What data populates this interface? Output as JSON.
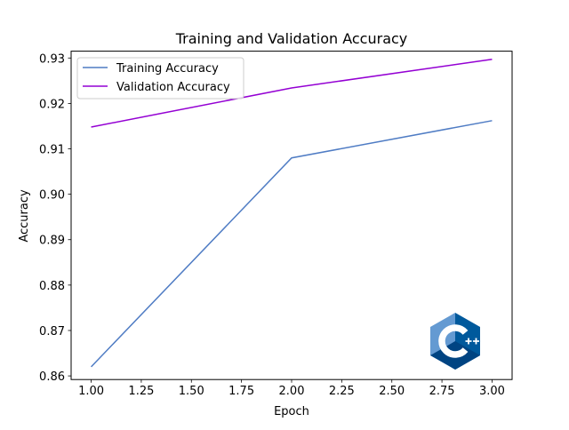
{
  "chart_data": {
    "type": "line",
    "title": "Training and Validation Accuracy",
    "xlabel": "Epoch",
    "ylabel": "Accuracy",
    "x": [
      1.0,
      2.0,
      3.0
    ],
    "xlim": [
      0.9,
      3.1
    ],
    "ylim": [
      0.8592,
      0.9315
    ],
    "x_ticks": [
      1.0,
      1.25,
      1.5,
      1.75,
      2.0,
      2.25,
      2.5,
      2.75,
      3.0
    ],
    "x_tick_labels": [
      "1.00",
      "1.25",
      "1.50",
      "1.75",
      "2.00",
      "2.25",
      "2.50",
      "2.75",
      "3.00"
    ],
    "y_ticks": [
      0.86,
      0.87,
      0.88,
      0.89,
      0.9,
      0.91,
      0.92,
      0.93
    ],
    "y_tick_labels": [
      "0.86",
      "0.87",
      "0.88",
      "0.89",
      "0.90",
      "0.91",
      "0.92",
      "0.93"
    ],
    "series": [
      {
        "name": "Training Accuracy",
        "values": [
          0.862,
          0.908,
          0.9162
        ],
        "color": "#4f7cc4"
      },
      {
        "name": "Validation Accuracy",
        "values": [
          0.9148,
          0.9234,
          0.9297
        ],
        "color": "#9400d3"
      }
    ],
    "legend_position": "top-left",
    "grid": false
  },
  "logo": {
    "name": "cpp-logo-icon",
    "colors": {
      "light": "#649ad2",
      "mid": "#00599c",
      "dark": "#004482",
      "letter": "#ffffff"
    }
  }
}
